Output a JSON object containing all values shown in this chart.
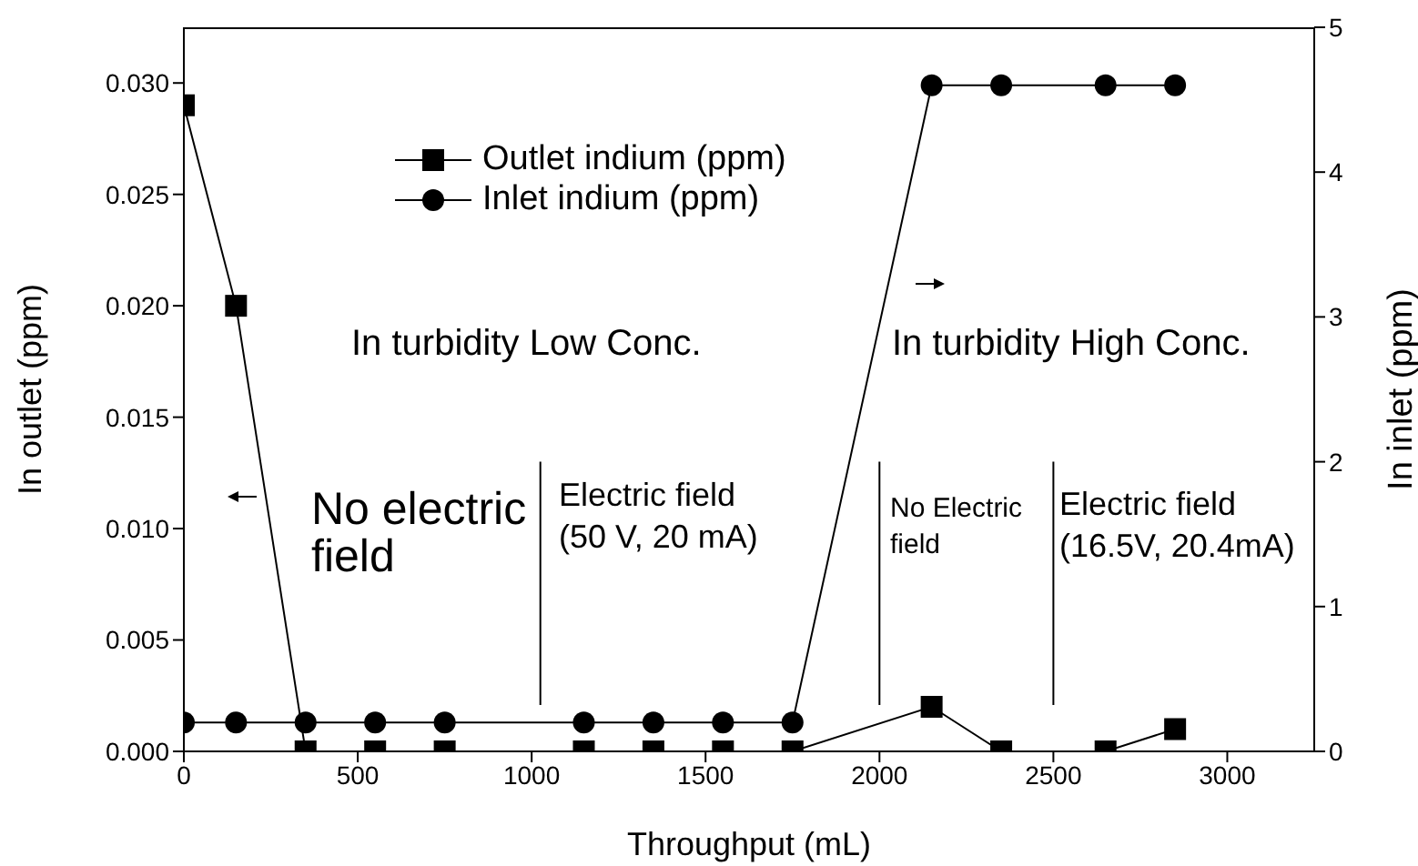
{
  "chart_data": {
    "type": "line",
    "xlabel": "Throughput (mL)",
    "ylabel": "In outlet (ppm)",
    "y2label": "In inlet (ppm)",
    "xlim": [
      0,
      3250
    ],
    "xticks": [
      0,
      500,
      1000,
      1500,
      2000,
      2500,
      3000
    ],
    "ylim": [
      0,
      0.0325
    ],
    "yticks": [
      {
        "value": 0,
        "label": "0.000"
      },
      {
        "value": 0.005,
        "label": "0.005"
      },
      {
        "value": 0.01,
        "label": "0.010"
      },
      {
        "value": 0.015,
        "label": "0.015"
      },
      {
        "value": 0.02,
        "label": "0.020"
      },
      {
        "value": 0.025,
        "label": "0.025"
      },
      {
        "value": 0.03,
        "label": "0.030"
      }
    ],
    "y2lim": [
      0,
      5
    ],
    "y2ticks": [
      0,
      1,
      2,
      3,
      4,
      5
    ],
    "grid": false,
    "legend": "top left",
    "series": [
      {
        "name": "Outlet indium (ppm)",
        "color": "#000000",
        "marker": "square",
        "x": [
          0,
          150,
          350,
          550,
          750,
          1150,
          1350,
          1550,
          1750,
          2150,
          2350,
          2650,
          2850
        ],
        "values": [
          0.029,
          0.02,
          0,
          0,
          0,
          0,
          0,
          0,
          0,
          0.002,
          0,
          0,
          0.001
        ]
      },
      {
        "name": "Inlet indium (ppm)",
        "color": "#000000",
        "marker": "circle",
        "axis": "y2",
        "x": [
          0,
          150,
          350,
          550,
          750,
          1150,
          1350,
          1550,
          1750,
          2150,
          2350,
          2650,
          2850
        ],
        "values": [
          0.2,
          0.2,
          0.2,
          0.2,
          0.2,
          0.2,
          0.2,
          0.2,
          0.2,
          4.6,
          4.6,
          4.6,
          4.6
        ]
      }
    ],
    "ref_lines": [
      {
        "axis": "x",
        "value": 1025,
        "color": "#000000"
      },
      {
        "axis": "x",
        "value": 2000,
        "color": "#000000"
      },
      {
        "axis": "x",
        "value": 2500,
        "color": "#000000"
      }
    ],
    "annotations": [
      "In turbidity Low Conc.",
      "In turbidity High Conc.",
      "No electric field",
      "Electric field (50 V, 20 mA)",
      "No Electric field",
      "Electric field (16.5V, 20.4mA)"
    ]
  }
}
